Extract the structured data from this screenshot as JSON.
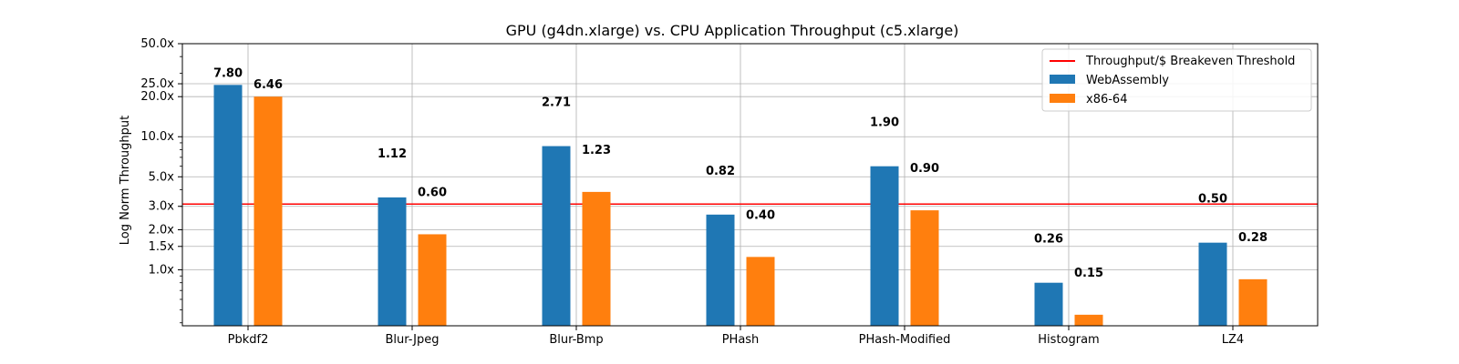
{
  "chart_data": {
    "type": "bar",
    "title": "GPU (g4dn.xlarge) vs. CPU Application Throughput (c5.xlarge)",
    "xlabel": "",
    "ylabel": "Log Norm Throughput",
    "yscale": "log",
    "ylim": [
      0.38,
      50
    ],
    "yticks": [
      1.0,
      1.5,
      2.0,
      3.0,
      5.0,
      10.0,
      20.0,
      25.0,
      50.0
    ],
    "ytick_labels": [
      "1.0x",
      "1.5x",
      "2.0x",
      "3.0x",
      "5.0x",
      "10.0x",
      "20.0x",
      "25.0x",
      "50.0x"
    ],
    "categories": [
      "Pbkdf2",
      "Blur-Jpeg",
      "Blur-Bmp",
      "PHash",
      "PHash-Modified",
      "Histogram",
      "LZ4"
    ],
    "series": [
      {
        "name": "WebAssembly",
        "color": "#1f77b4",
        "values": [
          24.5,
          3.5,
          8.5,
          2.6,
          6.0,
          0.8,
          1.6
        ],
        "labels": [
          "7.80",
          "1.12",
          "2.71",
          "0.82",
          "1.90",
          "0.26",
          "0.50"
        ]
      },
      {
        "name": "x86-64",
        "color": "#ff7f0e",
        "values": [
          20.0,
          1.85,
          3.85,
          1.25,
          2.8,
          0.46,
          0.85
        ],
        "labels": [
          "6.46",
          "0.60",
          "1.23",
          "0.40",
          "0.90",
          "0.15",
          "0.28"
        ]
      }
    ],
    "threshold": {
      "name": "Throughput/$ Breakeven Threshold",
      "value": 3.12,
      "color": "#ff0000"
    },
    "grid": true,
    "legend_position": "top-right"
  }
}
